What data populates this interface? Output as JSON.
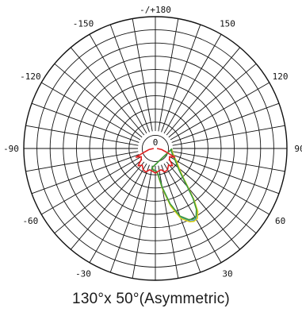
{
  "chart_data": {
    "type": "polar",
    "title": "130°x 50°(Asymmetric)",
    "angle_ticks": [
      {
        "angle": 180,
        "label": "-/+180"
      },
      {
        "angle": 150,
        "label": "150"
      },
      {
        "angle": 120,
        "label": "120"
      },
      {
        "angle": 90,
        "label": "90"
      },
      {
        "angle": 60,
        "label": "60"
      },
      {
        "angle": 30,
        "label": "30"
      },
      {
        "angle": 0,
        "label": "0"
      },
      {
        "angle": -30,
        "label": "-30"
      },
      {
        "angle": -60,
        "label": "-60"
      },
      {
        "angle": -90,
        "label": "-90"
      },
      {
        "angle": -120,
        "label": "-120"
      },
      {
        "angle": -150,
        "label": "-150"
      }
    ],
    "center_label": "0",
    "spoke_step_deg": 10,
    "ring_count": 10,
    "radial_range": [
      0,
      1
    ],
    "grid": true,
    "series": [
      {
        "color": "#2b8fd6",
        "points": [
          [
            -10,
            0.24
          ],
          [
            -5,
            0.26
          ],
          [
            0,
            0.26
          ],
          [
            5,
            0.3
          ],
          [
            10,
            0.5
          ],
          [
            15,
            0.72
          ],
          [
            20,
            0.9
          ],
          [
            25,
            0.98
          ],
          [
            28,
            1.0
          ],
          [
            31,
            0.99
          ],
          [
            34,
            0.92
          ],
          [
            37,
            0.78
          ],
          [
            40,
            0.62
          ],
          [
            44,
            0.48
          ],
          [
            48,
            0.4
          ],
          [
            52,
            0.35
          ],
          [
            58,
            0.3
          ],
          [
            65,
            0.25
          ],
          [
            72,
            0.22
          ],
          [
            80,
            0.2
          ],
          [
            88,
            0.2
          ]
        ]
      },
      {
        "color": "#e0d21a",
        "points": [
          [
            -10,
            0.24
          ],
          [
            -5,
            0.26
          ],
          [
            0,
            0.27
          ],
          [
            5,
            0.31
          ],
          [
            10,
            0.5
          ],
          [
            15,
            0.73
          ],
          [
            20,
            0.91
          ],
          [
            25,
            0.99
          ],
          [
            28,
            1.01
          ],
          [
            31,
            1.0
          ],
          [
            34,
            0.93
          ],
          [
            37,
            0.79
          ],
          [
            40,
            0.63
          ],
          [
            44,
            0.49
          ],
          [
            48,
            0.41
          ],
          [
            52,
            0.36
          ],
          [
            58,
            0.31
          ],
          [
            65,
            0.26
          ],
          [
            72,
            0.23
          ],
          [
            80,
            0.21
          ],
          [
            88,
            0.2
          ]
        ]
      },
      {
        "color": "#3e9a3c",
        "points": [
          [
            -10,
            0.24
          ],
          [
            -5,
            0.27
          ],
          [
            0,
            0.27
          ],
          [
            5,
            0.3
          ],
          [
            10,
            0.48
          ],
          [
            15,
            0.7
          ],
          [
            20,
            0.88
          ],
          [
            25,
            0.96
          ],
          [
            28,
            0.98
          ],
          [
            31,
            0.97
          ],
          [
            34,
            0.9
          ],
          [
            37,
            0.77
          ],
          [
            40,
            0.61
          ],
          [
            44,
            0.47
          ],
          [
            48,
            0.39
          ],
          [
            52,
            0.34
          ],
          [
            58,
            0.29
          ],
          [
            65,
            0.25
          ],
          [
            72,
            0.22
          ],
          [
            80,
            0.2
          ],
          [
            88,
            0.2
          ]
        ]
      },
      {
        "color": "#e02020",
        "points": [
          [
            -90,
            0.02
          ],
          [
            -80,
            0.08
          ],
          [
            -72,
            0.14
          ],
          [
            -66,
            0.26
          ],
          [
            -60,
            0.2
          ],
          [
            -52,
            0.22
          ],
          [
            -45,
            0.3
          ],
          [
            -38,
            0.26
          ],
          [
            -30,
            0.3
          ],
          [
            -22,
            0.31
          ],
          [
            -15,
            0.27
          ],
          [
            -8,
            0.28
          ],
          [
            0,
            0.3
          ],
          [
            8,
            0.28
          ],
          [
            15,
            0.27
          ],
          [
            22,
            0.31
          ],
          [
            30,
            0.3
          ],
          [
            38,
            0.26
          ],
          [
            45,
            0.3
          ],
          [
            52,
            0.22
          ],
          [
            60,
            0.2
          ],
          [
            66,
            0.26
          ],
          [
            72,
            0.14
          ],
          [
            80,
            0.08
          ],
          [
            90,
            0.02
          ]
        ]
      }
    ]
  }
}
